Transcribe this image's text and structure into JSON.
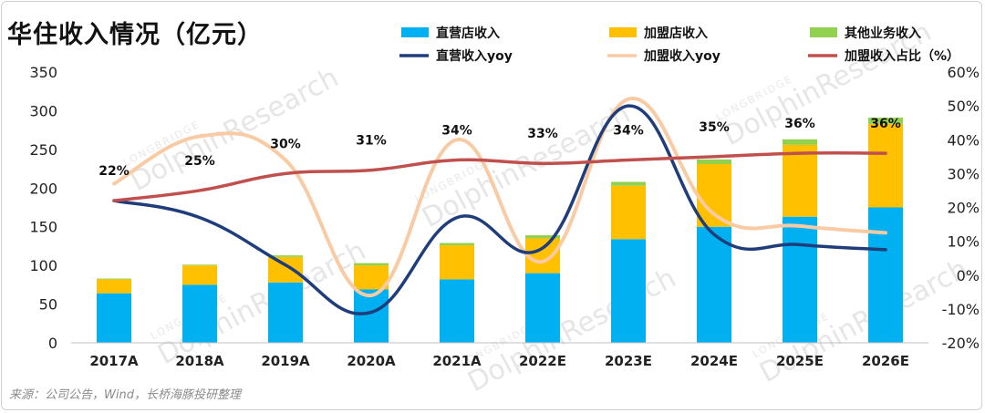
{
  "title": "华住收入情况（亿元）",
  "source": "来源：公司公告，Wind，长桥海豚投研整理",
  "watermark": {
    "main": "DolphinResearch",
    "sub": "LONGBRIDGE"
  },
  "chart_data": {
    "type": "bar",
    "stacked": true,
    "categories": [
      "2017A",
      "2018A",
      "2019A",
      "2020A",
      "2021A",
      "2022E",
      "2023E",
      "2024E",
      "2025E",
      "2026E"
    ],
    "series": [
      {
        "name": "直营店收入",
        "type": "bar",
        "axis": "left",
        "color": "#00b0f0",
        "values": [
          64,
          75,
          78,
          69,
          82,
          90,
          134,
          150,
          163,
          175
        ]
      },
      {
        "name": "加盟店收入",
        "type": "bar",
        "axis": "left",
        "color": "#ffc000",
        "values": [
          18,
          25,
          33,
          31,
          44,
          45,
          69,
          81,
          93,
          108
        ]
      },
      {
        "name": "其他业务收入",
        "type": "bar",
        "axis": "left",
        "color": "#92d050",
        "values": [
          1,
          1,
          2,
          3,
          3,
          4,
          5,
          6,
          7,
          8
        ]
      },
      {
        "name": "直营收入yoy",
        "type": "line",
        "axis": "right",
        "color": "#1f3d7a",
        "values": [
          22,
          17,
          3,
          -11,
          17,
          8,
          50,
          12,
          9,
          7.5
        ]
      },
      {
        "name": "加盟收入yoy",
        "type": "line",
        "axis": "right",
        "color": "#f8cba5",
        "values": [
          27,
          41,
          34,
          -6,
          40,
          4,
          52,
          18,
          14.5,
          12.5
        ]
      },
      {
        "name": "加盟收入占比（%）",
        "type": "line",
        "axis": "right",
        "color": "#c0504d",
        "values": [
          22,
          25,
          30,
          31,
          34,
          33,
          34,
          35,
          36,
          36
        ],
        "labels": [
          "22%",
          "25%",
          "30%",
          "31%",
          "34%",
          "33%",
          "34%",
          "35%",
          "36%",
          "36%"
        ]
      }
    ],
    "y_left": {
      "min": 0,
      "max": 350,
      "ticks": [
        "0",
        "50",
        "100",
        "150",
        "200",
        "250",
        "300",
        "350"
      ]
    },
    "y_right": {
      "min": -20,
      "max": 60,
      "ticks": [
        "-20%",
        "-10%",
        "0%",
        "10%",
        "20%",
        "30%",
        "40%",
        "50%",
        "60%"
      ]
    },
    "legend_position": "top",
    "grid": false
  }
}
